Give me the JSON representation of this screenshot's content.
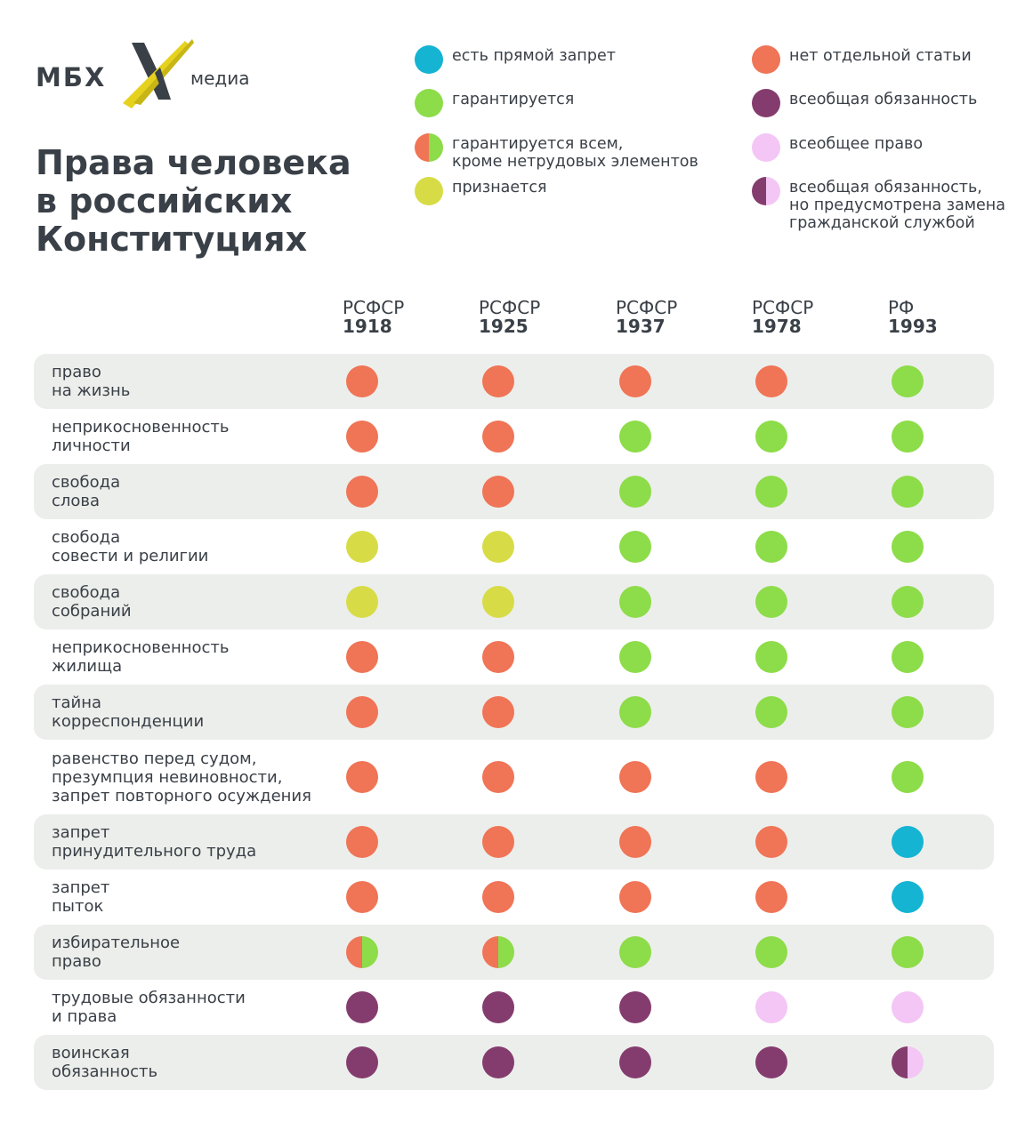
{
  "logo": {
    "left_text": "МБХ",
    "right_text": "медиа",
    "mark": "x-logo-mark"
  },
  "title": "Права человека в российских Конституциях",
  "colors": {
    "ban": "#14b4d2",
    "guaranteed": "#8ddc49",
    "recognized": "#d7dc46",
    "no_article": "#f07456",
    "duty": "#843c6e",
    "right": "#f3c6f5"
  },
  "legend": [
    {
      "key": "ban",
      "label": "есть прямой запрет",
      "colors": [
        "#14b4d2"
      ]
    },
    {
      "key": "guaranteed",
      "label": "гарантируется",
      "colors": [
        "#8ddc49"
      ]
    },
    {
      "key": "guaranteed_except",
      "label": "гарантируется всем,\nкроме нетрудовых элементов",
      "colors": [
        "#f07456",
        "#8ddc49"
      ]
    },
    {
      "key": "recognized",
      "label": "признается",
      "colors": [
        "#d7dc46"
      ]
    },
    {
      "key": "no_article",
      "label": "нет отдельной статьи",
      "colors": [
        "#f07456"
      ]
    },
    {
      "key": "duty",
      "label": "всеобщая обязанность",
      "colors": [
        "#843c6e"
      ]
    },
    {
      "key": "right",
      "label": "всеобщее право",
      "colors": [
        "#f3c6f5"
      ]
    },
    {
      "key": "duty_alt",
      "label": "всеобщая обязанность,\nно предусмотрена замена\nгражданской службой",
      "colors": [
        "#843c6e",
        "#f3c6f5"
      ]
    }
  ],
  "chart_data": {
    "type": "table",
    "columns": [
      {
        "name": "РСФСР",
        "year": "1918"
      },
      {
        "name": "РСФСР",
        "year": "1925"
      },
      {
        "name": "РСФСР",
        "year": "1937"
      },
      {
        "name": "РСФСР",
        "year": "1978"
      },
      {
        "name": "РФ",
        "year": "1993"
      }
    ],
    "rows": [
      {
        "label": "право\nна жизнь",
        "values": [
          "no_article",
          "no_article",
          "no_article",
          "no_article",
          "guaranteed"
        ]
      },
      {
        "label": "неприкосновенность\nличности",
        "values": [
          "no_article",
          "no_article",
          "guaranteed",
          "guaranteed",
          "guaranteed"
        ]
      },
      {
        "label": "свобода\nслова",
        "values": [
          "no_article",
          "no_article",
          "guaranteed",
          "guaranteed",
          "guaranteed"
        ]
      },
      {
        "label": "свобода\nсовести и религии",
        "values": [
          "recognized",
          "recognized",
          "guaranteed",
          "guaranteed",
          "guaranteed"
        ]
      },
      {
        "label": "свобода\nсобраний",
        "values": [
          "recognized",
          "recognized",
          "guaranteed",
          "guaranteed",
          "guaranteed"
        ]
      },
      {
        "label": "неприкосновенность\nжилища",
        "values": [
          "no_article",
          "no_article",
          "guaranteed",
          "guaranteed",
          "guaranteed"
        ]
      },
      {
        "label": "тайна\nкорреспонденции",
        "values": [
          "no_article",
          "no_article",
          "guaranteed",
          "guaranteed",
          "guaranteed"
        ]
      },
      {
        "label": "равенство перед судом,\nпрезумпция невиновности,\nзапрет повторного осуждения",
        "values": [
          "no_article",
          "no_article",
          "no_article",
          "no_article",
          "guaranteed"
        ]
      },
      {
        "label": "запрет\nпринудительного труда",
        "values": [
          "no_article",
          "no_article",
          "no_article",
          "no_article",
          "ban"
        ]
      },
      {
        "label": "запрет\nпыток",
        "values": [
          "no_article",
          "no_article",
          "no_article",
          "no_article",
          "ban"
        ]
      },
      {
        "label": "избирательное\nправо",
        "values": [
          "guaranteed_except",
          "guaranteed_except",
          "guaranteed",
          "guaranteed",
          "guaranteed"
        ]
      },
      {
        "label": "трудовые обязанности\nи права",
        "values": [
          "duty",
          "duty",
          "duty",
          "right",
          "right"
        ]
      },
      {
        "label": "воинская\nобязанность",
        "values": [
          "duty",
          "duty",
          "duty",
          "duty",
          "duty_alt"
        ]
      }
    ]
  }
}
